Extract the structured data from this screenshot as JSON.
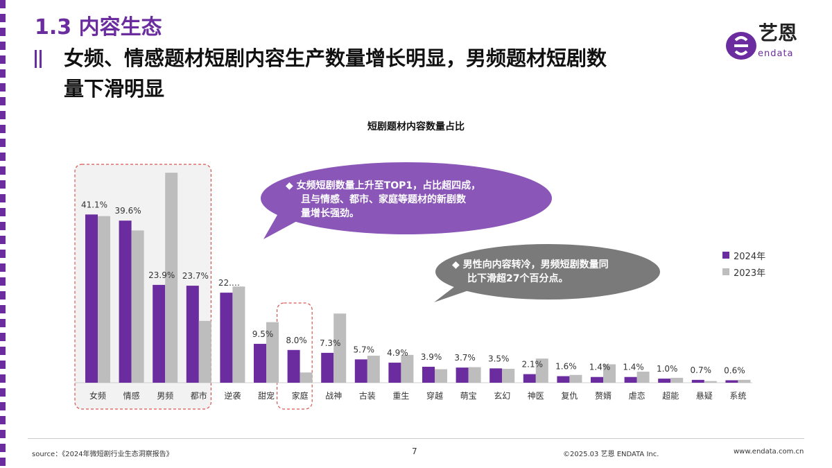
{
  "header": {
    "section": "1.3 内容生态",
    "headline_line1": "女频、情感题材短剧内容生产数量增长明显，男频题材短剧数",
    "headline_line2": "量下滑明显",
    "logo_cn": "艺恩",
    "logo_en": "endata"
  },
  "callouts": {
    "top": {
      "line1": "◆ 女频短剧数量上升至TOP1，占比超四成，",
      "line2": "且与情感、都市、家庭等题材的新剧数",
      "line3": "量增长强劲。"
    },
    "bottom": {
      "line1": "◆ 男性向内容转冷，男频短剧数量同",
      "line2": "比下滑超27个百分点。"
    }
  },
  "legend": {
    "a": "2024年",
    "b": "2023年"
  },
  "footer": {
    "source": "source：《2024年微短剧行业生态洞察报告》",
    "page": "7",
    "copyright": "©2025.03 艺恩 ENDATA Inc.",
    "url": "www.endata.com.cn"
  },
  "colors": {
    "accent": "#6a2c9e",
    "series_2024": "#6a2c9e",
    "series_2023": "#bdbdbd",
    "bubble_top": "#8a57b8",
    "bubble_bottom": "#7a7a7a",
    "highlight": "#d9534f"
  },
  "chart_data": {
    "type": "bar",
    "title": "短剧题材内容数量占比",
    "categories": [
      "女频",
      "情感",
      "男频",
      "都市",
      "逆袭",
      "甜宠",
      "家庭",
      "战神",
      "古装",
      "重生",
      "穿越",
      "萌宝",
      "玄幻",
      "神医",
      "复仇",
      "赘婿",
      "虐恋",
      "超能",
      "悬疑",
      "系统"
    ],
    "series": [
      {
        "name": "2024年",
        "values": [
          41.1,
          39.6,
          23.9,
          23.7,
          22.0,
          9.5,
          8.0,
          7.3,
          5.7,
          4.9,
          3.9,
          3.7,
          3.5,
          2.1,
          1.6,
          1.4,
          1.4,
          1.0,
          0.7,
          0.6
        ],
        "labels": [
          "41.1%",
          "39.6%",
          "23.9%",
          "23.7%",
          "22.…",
          "9.5%",
          "8.0%",
          "7.3%",
          "5.7%",
          "4.9%",
          "3.9%",
          "3.7%",
          "3.5%",
          "2.1%",
          "1.6%",
          "1.4%",
          "1.4%",
          "1.0%",
          "0.7%",
          "0.6%"
        ]
      },
      {
        "name": "2023年",
        "values": [
          40.7,
          37.2,
          51.3,
          15.1,
          23.5,
          14.8,
          2.5,
          16.9,
          6.6,
          6.8,
          3.3,
          3.8,
          3.4,
          5.9,
          1.9,
          4.5,
          2.7,
          1.2,
          0.4,
          0.7
        ]
      }
    ],
    "ylim": [
      0,
      52
    ],
    "highlight_groups": [
      [
        "女频",
        "情感",
        "男频",
        "都市"
      ],
      [
        "家庭"
      ]
    ]
  }
}
